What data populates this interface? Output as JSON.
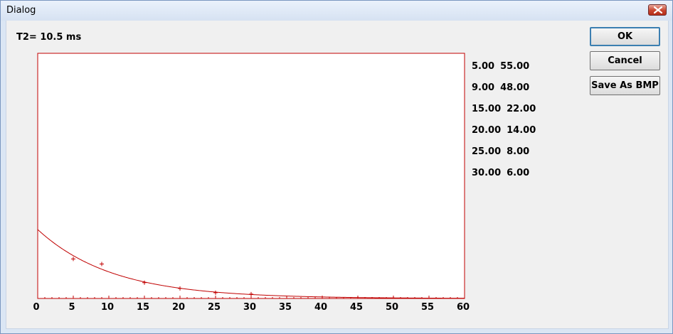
{
  "window": {
    "title": "Dialog"
  },
  "header": {
    "t2_label": "T2= 10.5 ms"
  },
  "buttons": {
    "ok": "OK",
    "cancel": "Cancel",
    "save_bmp": "Save As BMP"
  },
  "readings": [
    {
      "x": "5.00",
      "y": "55.00"
    },
    {
      "x": "9.00",
      "y": "48.00"
    },
    {
      "x": "15.00",
      "y": "22.00"
    },
    {
      "x": "20.00",
      "y": "14.00"
    },
    {
      "x": "25.00",
      "y": "8.00"
    },
    {
      "x": "30.00",
      "y": "6.00"
    }
  ],
  "colors": {
    "plot": "#c00000"
  },
  "chart_data": {
    "type": "scatter",
    "title": "",
    "xlabel": "",
    "ylabel": "",
    "xlim": [
      0,
      60
    ],
    "x_ticks": [
      "0",
      "5",
      "10",
      "15",
      "20",
      "25",
      "30",
      "35",
      "40",
      "45",
      "50",
      "55",
      "60"
    ],
    "points": [
      {
        "x": 5,
        "y": 55
      },
      {
        "x": 9,
        "y": 48
      },
      {
        "x": 15,
        "y": 22
      },
      {
        "x": 20,
        "y": 14
      },
      {
        "x": 25,
        "y": 8
      },
      {
        "x": 30,
        "y": 6
      }
    ],
    "fit": {
      "model": "exponential-decay",
      "t2": 10.5,
      "a0": 96
    },
    "grid": false
  }
}
